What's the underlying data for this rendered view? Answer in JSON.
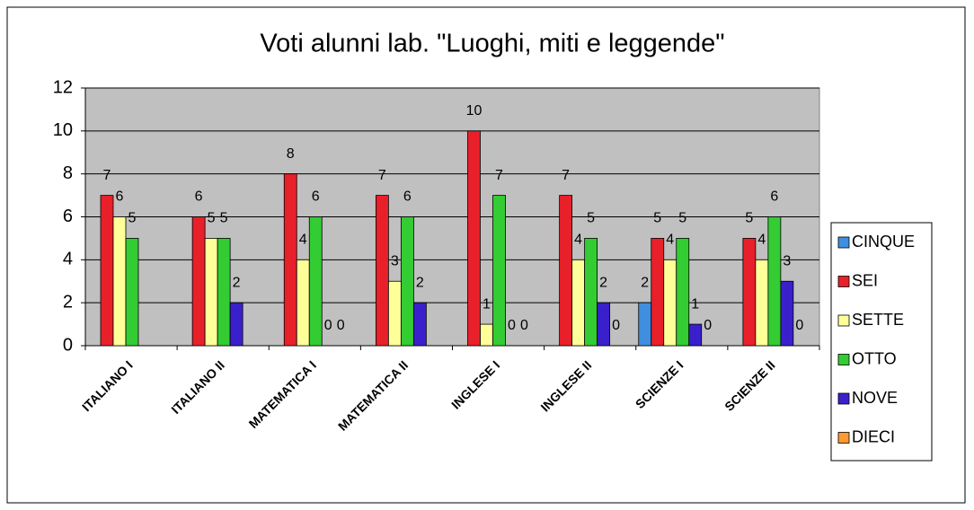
{
  "chart_data": {
    "type": "bar",
    "title": "Voti alunni lab. \"Luoghi, miti e leggende\"",
    "categories": [
      "ITALIANO I",
      "ITALIANO II",
      "MATEMATICA I",
      "MATEMATICA II",
      "INGLESE I",
      "INGLESE II",
      "SCIENZE I",
      "SCIENZE II"
    ],
    "series": [
      {
        "name": "CINQUE",
        "color": "#3f8fe0",
        "values": [
          null,
          null,
          null,
          null,
          null,
          null,
          2,
          null
        ]
      },
      {
        "name": "SEI",
        "color": "#e8202a",
        "values": [
          7,
          6,
          8,
          7,
          10,
          7,
          5,
          5
        ]
      },
      {
        "name": "SETTE",
        "color": "#ffff99",
        "values": [
          6,
          5,
          4,
          3,
          1,
          4,
          4,
          4
        ]
      },
      {
        "name": "OTTO",
        "color": "#33cc33",
        "values": [
          5,
          5,
          6,
          6,
          7,
          5,
          5,
          6
        ]
      },
      {
        "name": "NOVE",
        "color": "#3a20cc",
        "values": [
          null,
          2,
          0,
          2,
          0,
          2,
          1,
          3
        ]
      },
      {
        "name": "DIECI",
        "color": "#ff9933",
        "values": [
          null,
          null,
          0,
          null,
          0,
          0,
          0,
          0
        ]
      }
    ],
    "ylim": [
      0,
      12
    ],
    "yticks": [
      0,
      2,
      4,
      6,
      8,
      10,
      12
    ],
    "grid": true,
    "legend": "right"
  }
}
